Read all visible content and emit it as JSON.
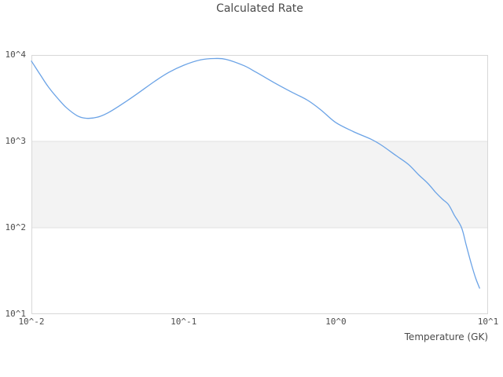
{
  "chart_data": {
    "type": "line",
    "title": "Calculated Rate",
    "xlabel": "Temperature (GK)",
    "ylabel": "",
    "x_scale": "log",
    "y_scale": "log",
    "xlim": [
      0.01,
      10
    ],
    "ylim": [
      10,
      10000
    ],
    "x_tick_labels": [
      "10^-2",
      "10^-1",
      "10^0",
      "10^1"
    ],
    "x_tick_values": [
      0.01,
      0.1,
      1,
      10
    ],
    "y_tick_labels": [
      "10^4",
      "10^3",
      "10^2",
      "10^1"
    ],
    "y_tick_values": [
      10000,
      1000,
      100,
      10
    ],
    "grid": false,
    "legend": false,
    "band": {
      "y_from": 100,
      "y_to": 1000,
      "fill": "#f3f3f3",
      "edge_color": "#e2e2e2"
    },
    "line_color": "#6ba3e6",
    "line_width": 1.3,
    "spine_color": "#d8d8d8",
    "series": [
      {
        "name": "Calculated Rate",
        "points": [
          [
            0.01,
            8500
          ],
          [
            0.0115,
            5800
          ],
          [
            0.013,
            4200
          ],
          [
            0.015,
            3100
          ],
          [
            0.017,
            2450
          ],
          [
            0.02,
            1980
          ],
          [
            0.023,
            1850
          ],
          [
            0.027,
            1900
          ],
          [
            0.032,
            2150
          ],
          [
            0.04,
            2750
          ],
          [
            0.05,
            3600
          ],
          [
            0.065,
            5000
          ],
          [
            0.08,
            6300
          ],
          [
            0.1,
            7600
          ],
          [
            0.13,
            8800
          ],
          [
            0.16,
            9100
          ],
          [
            0.19,
            8900
          ],
          [
            0.25,
            7500
          ],
          [
            0.3,
            6300
          ],
          [
            0.4,
            4700
          ],
          [
            0.5,
            3800
          ],
          [
            0.65,
            3000
          ],
          [
            0.8,
            2300
          ],
          [
            1.0,
            1650
          ],
          [
            1.3,
            1300
          ],
          [
            1.7,
            1060
          ],
          [
            2.0,
            900
          ],
          [
            2.5,
            680
          ],
          [
            3.0,
            540
          ],
          [
            3.5,
            410
          ],
          [
            4.0,
            330
          ],
          [
            4.5,
            260
          ],
          [
            5.0,
            215
          ],
          [
            5.5,
            185
          ],
          [
            6.0,
            140
          ],
          [
            6.7,
            100
          ],
          [
            7.2,
            62
          ],
          [
            7.8,
            37
          ],
          [
            8.3,
            26
          ],
          [
            8.8,
            20
          ]
        ]
      }
    ]
  },
  "colors": {
    "background": "#ffffff",
    "tick_text": "#4d4d4d",
    "title_text": "#4a4a4a"
  }
}
